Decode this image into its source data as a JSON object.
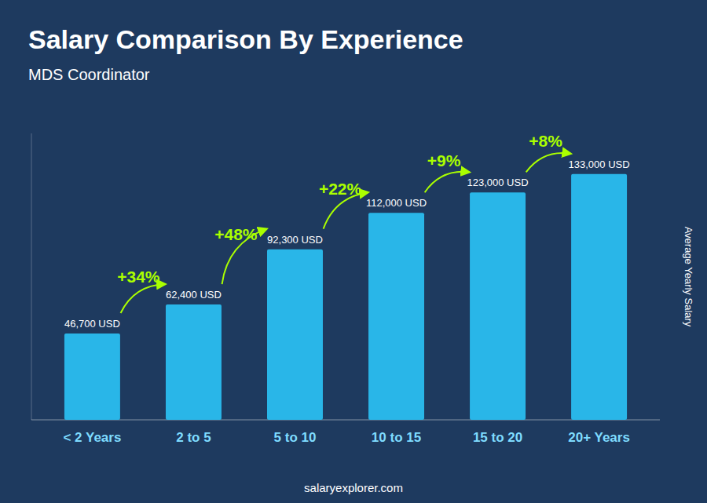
{
  "chart_data": {
    "type": "bar",
    "title": "Salary Comparison By Experience",
    "subtitle": "MDS Coordinator",
    "ylabel": "Average Yearly Salary",
    "footer": "salaryexplorer.com",
    "categories": [
      "< 2 Years",
      "2 to 5",
      "5 to 10",
      "10 to 15",
      "15 to 20",
      "20+ Years"
    ],
    "values": [
      46700,
      62400,
      92300,
      112000,
      123000,
      133000
    ],
    "value_labels": [
      "46,700 USD",
      "62,400 USD",
      "92,300 USD",
      "112,000 USD",
      "123,000 USD",
      "133,000 USD"
    ],
    "annotations": [
      "+34%",
      "+48%",
      "+22%",
      "+9%",
      "+8%"
    ],
    "color": "#29b6e8",
    "ylim": [
      0,
      155000
    ],
    "data_labels": true,
    "tick_labels": false,
    "grid": false
  }
}
